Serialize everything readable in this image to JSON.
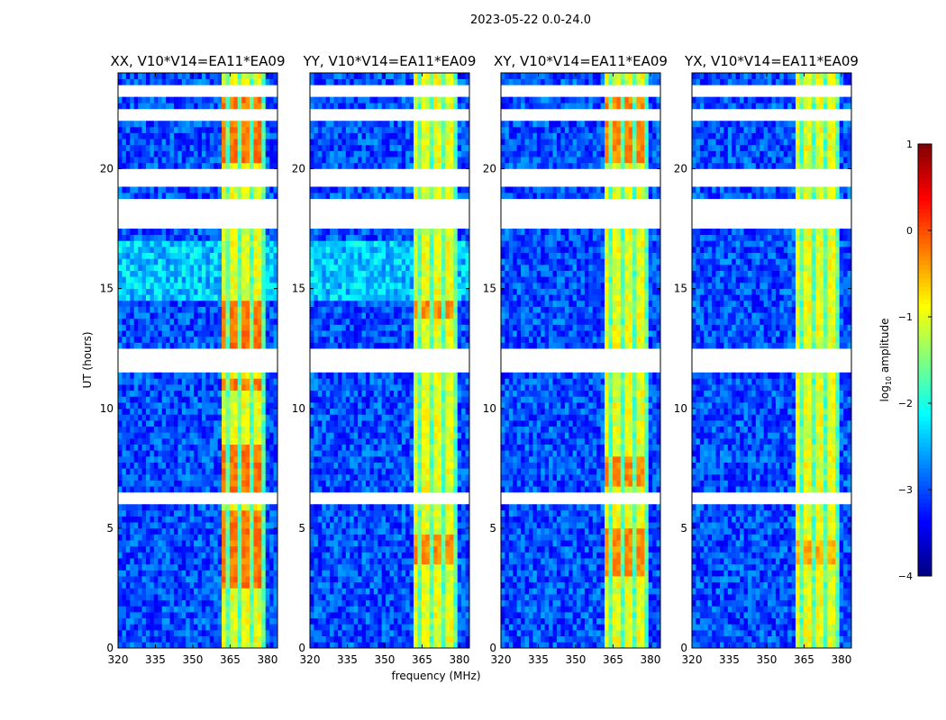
{
  "chart_data": {
    "type": "heatmap",
    "suptitle": "2023-05-22 0.0-24.0",
    "xlabel": "frequency (MHz)",
    "ylabel": "UT (hours)",
    "xlim": [
      320,
      384
    ],
    "ylim": [
      0,
      24
    ],
    "xticks": [
      320,
      335,
      350,
      365,
      380
    ],
    "yticks": [
      0,
      5,
      10,
      15,
      20
    ],
    "panels": [
      {
        "title": "XX, V10*V14=EA11*EA09",
        "hot_hours": [
          [
            2.5,
            5.8
          ],
          [
            6.6,
            8.5
          ],
          [
            12.2,
            14.5
          ],
          [
            20.2,
            23.0
          ],
          [
            10.8,
            11.3
          ]
        ],
        "hot_level": -0.2
      },
      {
        "title": "YY, V10*V14=EA11*EA09",
        "hot_hours": [
          [
            3.4,
            4.8
          ],
          [
            13.8,
            14.6
          ]
        ],
        "hot_level": -0.3
      },
      {
        "title": "XY, V10*V14=EA11*EA09",
        "hot_hours": [
          [
            3.0,
            5.0
          ],
          [
            6.8,
            8.0
          ],
          [
            20.3,
            23.0
          ]
        ],
        "hot_level": -0.3
      },
      {
        "title": "YX, V10*V14=EA11*EA09",
        "hot_hours": [
          [
            3.4,
            4.6
          ]
        ],
        "hot_level": -0.5
      }
    ],
    "flagged_hours": [
      [
        23.0,
        23.4
      ],
      [
        22.0,
        22.4
      ],
      [
        21.2,
        21.35
      ],
      [
        19.2,
        20.1
      ],
      [
        17.5,
        18.8
      ],
      [
        11.6,
        12.5
      ],
      [
        6.0,
        6.5
      ],
      [
        2.4,
        2.6
      ]
    ],
    "rfi_band_mhz": [
      362,
      380
    ],
    "background_level": -3.0,
    "rfi_level": -1.0,
    "colorbar": {
      "label": "log",
      "label_sub": "10",
      "label_rest": " amplitude",
      "range": [
        -4,
        1
      ],
      "ticks": [
        "1",
        "0",
        "−1",
        "−2",
        "−3",
        "−4"
      ],
      "tick_values": [
        1,
        0,
        -1,
        -2,
        -3,
        -4
      ],
      "colormap": "jet"
    }
  }
}
